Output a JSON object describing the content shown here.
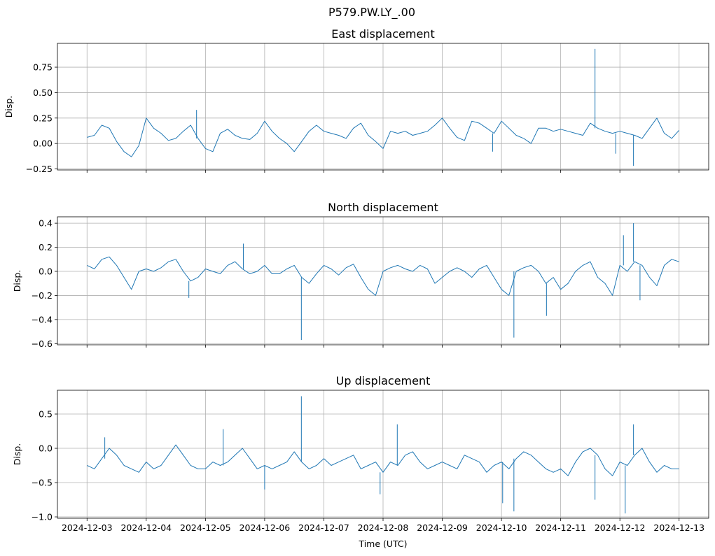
{
  "chart_data": {
    "type": "line",
    "suptitle": "P579.PW.LY_.00",
    "xlabel": "Time (UTC)",
    "x_start": "2024-12-03",
    "x_step_hours": 3,
    "xlim_days": [
      -0.5,
      10.5
    ],
    "x_tick_labels": [
      "2024-12-03",
      "2024-12-04",
      "2024-12-05",
      "2024-12-06",
      "2024-12-07",
      "2024-12-08",
      "2024-12-09",
      "2024-12-10",
      "2024-12-11",
      "2024-12-12",
      "2024-12-13"
    ],
    "line_color": "#1f77b4",
    "grid": true,
    "panels": [
      {
        "title": "East displacement",
        "ylabel": "Disp.",
        "ylim": [
          -0.26,
          0.984
        ],
        "y_ticks": [
          -0.25,
          0,
          0.25,
          0.5,
          0.75
        ],
        "y_tick_labels": [
          "−0.25",
          "0.00",
          "0.25",
          "0.50",
          "0.75"
        ],
        "values": [
          0.06,
          0.08,
          0.18,
          0.15,
          0.02,
          -0.08,
          -0.13,
          -0.02,
          0.25,
          0.15,
          0.1,
          0.03,
          0.05,
          0.12,
          0.18,
          0.05,
          -0.05,
          -0.08,
          0.1,
          0.14,
          0.08,
          0.05,
          0.04,
          0.1,
          0.22,
          0.12,
          0.05,
          0.0,
          -0.08,
          0.02,
          0.12,
          0.18,
          0.12,
          0.1,
          0.08,
          0.05,
          0.15,
          0.2,
          0.08,
          0.02,
          -0.05,
          0.12,
          0.1,
          0.12,
          0.08,
          0.1,
          0.12,
          0.18,
          0.25,
          0.15,
          0.06,
          0.03,
          0.22,
          0.2,
          0.15,
          0.1,
          0.22,
          0.15,
          0.08,
          0.05,
          0.0,
          0.15,
          0.15,
          0.12,
          0.14,
          0.12,
          0.1,
          0.08,
          0.2,
          0.15,
          0.12,
          0.1,
          0.12,
          0.1,
          0.08,
          0.05,
          0.15,
          0.25,
          0.1,
          0.05,
          0.13
        ],
        "spikes": [
          [
            8.58,
            0.93
          ],
          [
            9.23,
            -0.22
          ],
          [
            8.93,
            -0.1
          ],
          [
            1.85,
            0.33
          ],
          [
            6.85,
            -0.08
          ]
        ]
      },
      {
        "title": "North displacement",
        "ylabel": "Disp.",
        "ylim": [
          -0.61,
          0.453
        ],
        "y_ticks": [
          -0.6,
          -0.4,
          -0.2,
          0,
          0.2,
          0.4
        ],
        "y_tick_labels": [
          "−0.6",
          "−0.4",
          "−0.2",
          "0.0",
          "0.2",
          "0.4"
        ],
        "values": [
          0.05,
          0.02,
          0.1,
          0.12,
          0.05,
          -0.05,
          -0.15,
          0.0,
          0.02,
          0.0,
          0.03,
          0.08,
          0.1,
          0.0,
          -0.08,
          -0.05,
          0.02,
          0.0,
          -0.02,
          0.05,
          0.08,
          0.02,
          -0.02,
          0.0,
          0.05,
          -0.02,
          -0.02,
          0.02,
          0.05,
          -0.05,
          -0.1,
          -0.02,
          0.05,
          0.02,
          -0.03,
          0.03,
          0.06,
          -0.05,
          -0.15,
          -0.2,
          0.0,
          0.03,
          0.05,
          0.02,
          0.0,
          0.05,
          0.02,
          -0.1,
          -0.05,
          0.0,
          0.03,
          0.0,
          -0.05,
          0.02,
          0.05,
          -0.05,
          -0.15,
          -0.2,
          0.0,
          0.03,
          0.05,
          0.0,
          -0.1,
          -0.05,
          -0.15,
          -0.1,
          0.0,
          0.05,
          0.08,
          -0.05,
          -0.1,
          -0.2,
          0.05,
          0.0,
          0.08,
          0.05,
          -0.05,
          -0.12,
          0.05,
          0.1,
          0.08
        ],
        "spikes": [
          [
            3.62,
            -0.57
          ],
          [
            7.21,
            -0.55
          ],
          [
            2.64,
            0.23
          ],
          [
            9.23,
            0.4
          ],
          [
            9.06,
            0.3
          ],
          [
            9.34,
            -0.24
          ],
          [
            7.76,
            -0.37
          ],
          [
            1.72,
            -0.22
          ]
        ]
      },
      {
        "title": "Up displacement",
        "ylabel": "Disp.",
        "ylim": [
          -1.02,
          0.847
        ],
        "y_ticks": [
          -1.0,
          -0.5,
          0,
          0.5
        ],
        "y_tick_labels": [
          "−1.0",
          "−0.5",
          "0.0",
          "0.5"
        ],
        "values": [
          -0.25,
          -0.3,
          -0.15,
          0.0,
          -0.1,
          -0.25,
          -0.3,
          -0.35,
          -0.2,
          -0.3,
          -0.25,
          -0.1,
          0.05,
          -0.1,
          -0.25,
          -0.3,
          -0.3,
          -0.2,
          -0.25,
          -0.2,
          -0.1,
          0.0,
          -0.15,
          -0.3,
          -0.25,
          -0.3,
          -0.25,
          -0.2,
          -0.05,
          -0.2,
          -0.3,
          -0.25,
          -0.15,
          -0.25,
          -0.2,
          -0.15,
          -0.1,
          -0.3,
          -0.25,
          -0.2,
          -0.35,
          -0.2,
          -0.25,
          -0.1,
          -0.05,
          -0.2,
          -0.3,
          -0.25,
          -0.2,
          -0.25,
          -0.3,
          -0.1,
          -0.15,
          -0.2,
          -0.35,
          -0.25,
          -0.2,
          -0.3,
          -0.15,
          -0.05,
          -0.1,
          -0.2,
          -0.3,
          -0.35,
          -0.3,
          -0.4,
          -0.2,
          -0.05,
          0.0,
          -0.1,
          -0.3,
          -0.4,
          -0.2,
          -0.25,
          -0.1,
          0.0,
          -0.2,
          -0.35,
          -0.25,
          -0.3,
          -0.3
        ],
        "spikes": [
          [
            3.62,
            0.76
          ],
          [
            7.21,
            -0.92
          ],
          [
            7.02,
            -0.8
          ],
          [
            9.09,
            -0.95
          ],
          [
            9.23,
            0.35
          ],
          [
            5.24,
            0.35
          ],
          [
            8.58,
            -0.75
          ],
          [
            3.0,
            -0.6
          ],
          [
            4.95,
            -0.67
          ],
          [
            0.3,
            0.16
          ],
          [
            2.3,
            0.28
          ]
        ]
      }
    ]
  }
}
